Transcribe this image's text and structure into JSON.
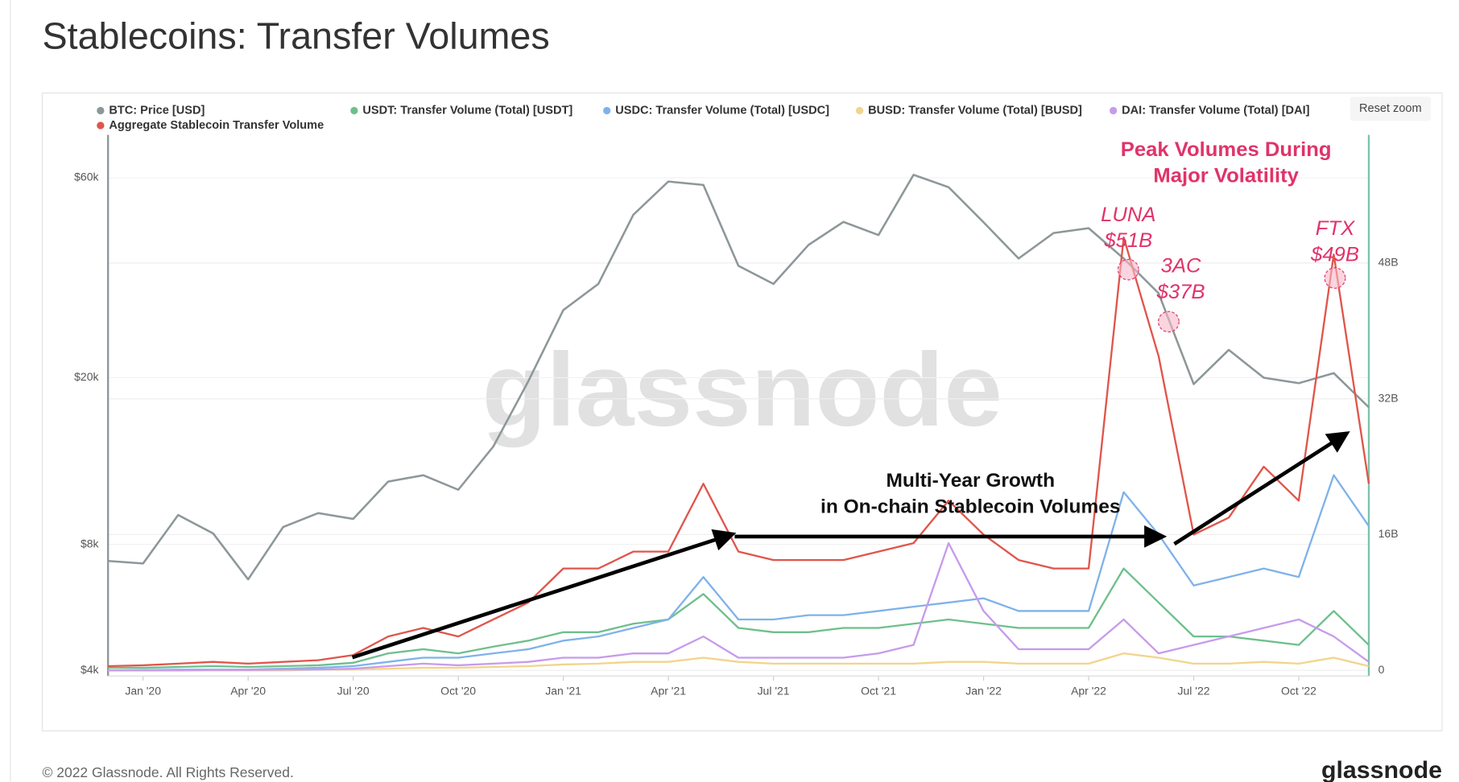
{
  "chart_data": {
    "type": "line",
    "title": "Stablecoins: Transfer Volumes",
    "x": [
      "2019-12",
      "2020-01",
      "2020-02",
      "2020-03",
      "2020-04",
      "2020-05",
      "2020-06",
      "2020-07",
      "2020-08",
      "2020-09",
      "2020-10",
      "2020-11",
      "2020-12",
      "2021-01",
      "2021-02",
      "2021-03",
      "2021-04",
      "2021-05",
      "2021-06",
      "2021-07",
      "2021-08",
      "2021-09",
      "2021-10",
      "2021-11",
      "2021-12",
      "2022-01",
      "2022-02",
      "2022-03",
      "2022-04",
      "2022-05",
      "2022-06",
      "2022-07",
      "2022-08",
      "2022-09",
      "2022-10",
      "2022-11",
      "2022-12"
    ],
    "xlim": [
      "2019-12",
      "2022-12"
    ],
    "xticks": [
      {
        "value": "2020-01",
        "label": "Jan '20"
      },
      {
        "value": "2020-04",
        "label": "Apr '20"
      },
      {
        "value": "2020-07",
        "label": "Jul '20"
      },
      {
        "value": "2020-10",
        "label": "Oct '20"
      },
      {
        "value": "2021-01",
        "label": "Jan '21"
      },
      {
        "value": "2021-04",
        "label": "Apr '21"
      },
      {
        "value": "2021-07",
        "label": "Jul '21"
      },
      {
        "value": "2021-10",
        "label": "Oct '21"
      },
      {
        "value": "2022-01",
        "label": "Jan '22"
      },
      {
        "value": "2022-04",
        "label": "Apr '22"
      },
      {
        "value": "2022-07",
        "label": "Jul '22"
      },
      {
        "value": "2022-10",
        "label": "Oct '22"
      }
    ],
    "ylim": [
      3880,
      76000
    ],
    "ylog": true,
    "yticks": [
      {
        "value": 4000,
        "label": "$4k"
      },
      {
        "value": 8000,
        "label": "$8k"
      },
      {
        "value": 20000,
        "label": "$20k"
      },
      {
        "value": 60000,
        "label": "$60k"
      }
    ],
    "y2lim": [
      -0.66,
      63.1
    ],
    "y2ticks": [
      0,
      {
        "value": 16,
        "label": "16B"
      },
      {
        "value": 32,
        "label": "32B"
      },
      {
        "value": 48,
        "label": "48B"
      }
    ],
    "grid": true,
    "legend": "top-left",
    "series": [
      {
        "name": "BTC: Price [USD]",
        "color": "#8d9799",
        "axis": "y",
        "values": [
          7300,
          7200,
          9400,
          8500,
          6600,
          8800,
          9500,
          9200,
          11300,
          11700,
          10800,
          13700,
          19600,
          29000,
          33500,
          49000,
          58800,
          57700,
          37000,
          33500,
          41500,
          47100,
          43800,
          61000,
          57000,
          47000,
          38500,
          44300,
          45500,
          38500,
          31800,
          19300,
          23300,
          20000,
          19400,
          20500,
          17000
        ]
      },
      {
        "name": "USDT: Transfer Volume (Total) [USDT]",
        "color": "#6fbf8c",
        "axis": "y2",
        "values": [
          0.3,
          0.3,
          0.4,
          0.5,
          0.4,
          0.5,
          0.6,
          0.9,
          2,
          2.5,
          2,
          2.8,
          3.5,
          4.5,
          4.5,
          5.5,
          6,
          9,
          5,
          4.5,
          4.5,
          5,
          5,
          5.5,
          6,
          5.5,
          5,
          5,
          5,
          12,
          8,
          4,
          4,
          3.5,
          3,
          7,
          3
        ]
      },
      {
        "name": "USDC: Transfer Volume (Total) [USDC]",
        "color": "#7fb2ea",
        "axis": "y2",
        "values": [
          0,
          0.05,
          0.1,
          0.1,
          0.1,
          0.2,
          0.3,
          0.5,
          1,
          1.5,
          1.5,
          2,
          2.5,
          3.5,
          4,
          5,
          6,
          11,
          6,
          6,
          6.5,
          6.5,
          7,
          7.5,
          8,
          8.5,
          7,
          7,
          7,
          21,
          16,
          10,
          11,
          12,
          11,
          23,
          17
        ]
      },
      {
        "name": "BUSD: Transfer Volume (Total) [BUSD]",
        "color": "#f2d48c",
        "axis": "y2",
        "values": [
          0,
          0,
          0,
          0,
          0,
          0,
          0.1,
          0.1,
          0.2,
          0.3,
          0.3,
          0.4,
          0.5,
          0.7,
          0.8,
          1,
          1,
          1.5,
          1,
          0.8,
          0.8,
          0.8,
          0.8,
          0.8,
          1,
          1,
          0.8,
          0.8,
          0.8,
          2,
          1.5,
          0.8,
          0.8,
          1,
          0.8,
          1.5,
          0.5
        ]
      },
      {
        "name": "DAI: Transfer Volume (Total) [DAI]",
        "color": "#c79beb",
        "axis": "y2",
        "values": [
          0,
          0,
          0,
          0.05,
          0.05,
          0.1,
          0.1,
          0.2,
          0.5,
          0.8,
          0.6,
          0.8,
          1,
          1.5,
          1.5,
          2,
          2,
          4,
          1.5,
          1.5,
          1.5,
          1.5,
          2,
          3,
          15,
          7,
          2.5,
          2.5,
          2.5,
          6,
          2,
          3,
          4,
          5,
          6,
          4,
          1
        ]
      },
      {
        "name": "Aggregate Stablecoin Transfer Volume",
        "color": "#e0554b",
        "axis": "y2",
        "values": [
          0.5,
          0.6,
          0.8,
          1.0,
          0.8,
          1.0,
          1.2,
          1.8,
          4,
          5,
          4,
          6,
          8,
          12,
          12,
          14,
          14,
          22,
          14,
          13,
          13,
          13,
          14,
          15,
          20,
          16,
          13,
          12,
          12,
          51,
          37,
          16,
          18,
          24,
          20,
          49,
          22
        ]
      }
    ],
    "annotations": [
      "Peak Volumes During",
      "Major Volatility",
      "LUNA",
      "$51B",
      "3AC",
      "$37B",
      "FTX",
      "$49B",
      "Multi-Year Growth",
      "in On-chain Stablecoin Volumes"
    ],
    "watermark": "glassnode",
    "reset_button": "Reset zoom",
    "copyright": "© 2022 Glassnode. All Rights Reserved.",
    "logo": "glassnode"
  }
}
